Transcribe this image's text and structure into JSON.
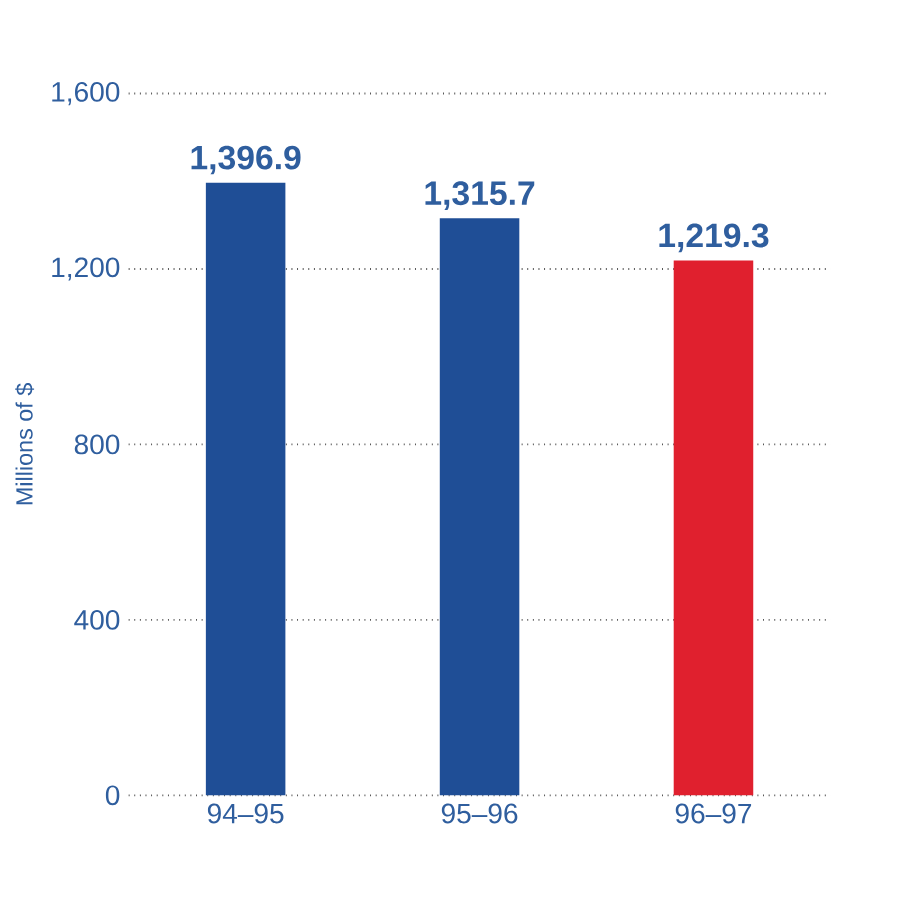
{
  "chart_data": {
    "type": "bar",
    "ylabel": "Millions of $",
    "categories": [
      "94–95",
      "95–96",
      "96–97"
    ],
    "values": [
      1396.9,
      1315.7,
      1219.3
    ],
    "value_labels": [
      "1,396.9",
      "1,315.7",
      "1,219.3"
    ],
    "colors": [
      "#1f4e96",
      "#1f4e96",
      "#e0202e"
    ],
    "ylim": [
      0,
      1600
    ],
    "yticks": [
      0,
      400,
      800,
      {
        "value": 1200,
        "label": "1,200"
      },
      {
        "value": 1600,
        "label": "1,600"
      }
    ],
    "grid": "y"
  }
}
